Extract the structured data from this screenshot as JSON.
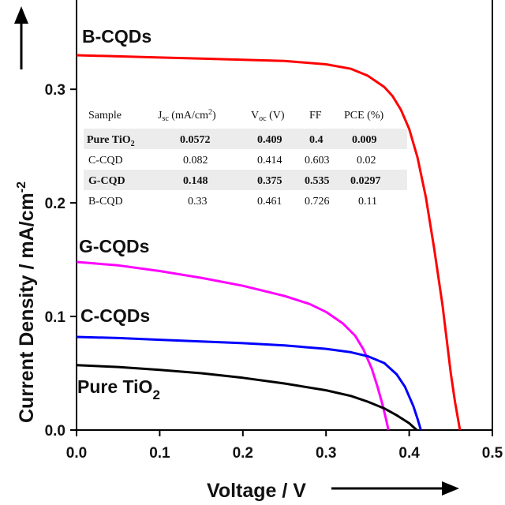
{
  "chart_data": {
    "type": "line",
    "xlabel": "Voltage / V",
    "ylabel": "Current Density / mA/cm",
    "ylabel_sup": "-2",
    "xlim": [
      0,
      0.5
    ],
    "ylim": [
      0,
      0.38
    ],
    "x_ticks": [
      "0.0",
      "0.1",
      "0.2",
      "0.3",
      "0.4",
      "0.5"
    ],
    "y_ticks": [
      "0.0",
      "0.1",
      "0.2",
      "0.3"
    ],
    "grid": false,
    "series": [
      {
        "name": "B-CQDs",
        "color": "#ff0000",
        "x": [
          0,
          0.05,
          0.1,
          0.15,
          0.2,
          0.25,
          0.3,
          0.33,
          0.35,
          0.37,
          0.38,
          0.39,
          0.4,
          0.41,
          0.42,
          0.43,
          0.44,
          0.45,
          0.455,
          0.461
        ],
        "y": [
          0.33,
          0.329,
          0.328,
          0.327,
          0.326,
          0.325,
          0.322,
          0.318,
          0.312,
          0.302,
          0.294,
          0.282,
          0.265,
          0.24,
          0.205,
          0.16,
          0.11,
          0.05,
          0.025,
          0.0
        ]
      },
      {
        "name": "G-CQDs",
        "color": "#ff00ff",
        "x": [
          0,
          0.05,
          0.1,
          0.15,
          0.2,
          0.25,
          0.28,
          0.3,
          0.32,
          0.335,
          0.345,
          0.355,
          0.362,
          0.368,
          0.372,
          0.375
        ],
        "y": [
          0.148,
          0.145,
          0.14,
          0.134,
          0.127,
          0.118,
          0.111,
          0.104,
          0.094,
          0.083,
          0.071,
          0.054,
          0.038,
          0.022,
          0.01,
          0.0
        ]
      },
      {
        "name": "C-CQDs",
        "color": "#0000ff",
        "x": [
          0,
          0.05,
          0.1,
          0.15,
          0.2,
          0.25,
          0.3,
          0.33,
          0.35,
          0.37,
          0.385,
          0.395,
          0.405,
          0.41,
          0.414
        ],
        "y": [
          0.082,
          0.081,
          0.0795,
          0.078,
          0.0765,
          0.0745,
          0.0715,
          0.0685,
          0.065,
          0.059,
          0.049,
          0.038,
          0.021,
          0.01,
          0.0
        ]
      },
      {
        "name": "Pure TiO",
        "name_sub": "2",
        "color": "#000000",
        "x": [
          0,
          0.05,
          0.1,
          0.15,
          0.2,
          0.25,
          0.3,
          0.33,
          0.35,
          0.37,
          0.385,
          0.4,
          0.409
        ],
        "y": [
          0.0572,
          0.0555,
          0.053,
          0.05,
          0.046,
          0.041,
          0.035,
          0.03,
          0.025,
          0.019,
          0.013,
          0.006,
          0.0
        ]
      }
    ],
    "table": {
      "headers": [
        "Sample",
        "J",
        "sc",
        " (mA/cm",
        "2",
        ")",
        "V",
        "oc",
        " (V)",
        "FF",
        "PCE (%)"
      ],
      "rows": [
        [
          "Pure TiO",
          "2",
          "0.0572",
          "0.409",
          "0.4",
          "0.009"
        ],
        [
          "C-CQD",
          "",
          "0.082",
          "0.414",
          "0.603",
          "0.02"
        ],
        [
          "G-CQD",
          "",
          "0.148",
          "0.375",
          "0.535",
          "0.0297"
        ],
        [
          "B-CQD",
          "",
          "0.33",
          "0.461",
          "0.726",
          "0.11"
        ]
      ]
    }
  }
}
